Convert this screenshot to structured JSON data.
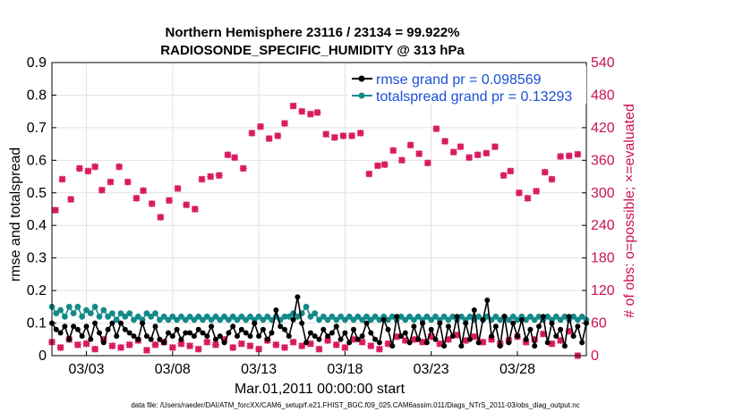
{
  "chart_data": {
    "type": "line",
    "title_line1": "Northern Hemisphere 23116 / 23134 = 99.922%",
    "title_line2": "RADIOSONDE_SPECIFIC_HUMIDITY @ 313 hPa",
    "xlabel": "Mar.01,2011 00:00:00 start",
    "ylabel_left": "rmse and totalspread",
    "ylabel_right": "# of obs: o=possible; ×=evaluated",
    "footer": "data file: /Users/raeder/DAI/ATM_forcXX/CAM6_setup/f.e21.FHIST_BGC.f09_025.CAM6assim.011/Diags_NTrS_2011-03/obs_diag_output.nc",
    "xlim": [
      1,
      32
    ],
    "x_ticks": [
      3,
      8,
      13,
      18,
      23,
      28
    ],
    "x_tick_labels": [
      "03/03",
      "03/08",
      "03/13",
      "03/18",
      "03/23",
      "03/28"
    ],
    "ylim_left": [
      0,
      0.9
    ],
    "y_ticks_left": [
      "0",
      "0.1",
      "0.2",
      "0.3",
      "0.4",
      "0.5",
      "0.6",
      "0.7",
      "0.8",
      "0.9"
    ],
    "ylim_right": [
      0,
      540
    ],
    "y_ticks_right": [
      "0",
      "60",
      "120",
      "180",
      "240",
      "300",
      "360",
      "420",
      "480",
      "540"
    ],
    "grid": true,
    "legend_position": "top-right",
    "colors": {
      "rmse": "#000000",
      "totalspread": "#138a8a",
      "obs": "#d81b60",
      "right_axis": "#cc1155",
      "legend_text": "#1a4fd6",
      "grid": "#e2e2e2"
    },
    "series": [
      {
        "name": "rmse grand pr = 0.098569",
        "key": "rmse",
        "x_start": 1.0,
        "x_step": 0.25,
        "values": [
          0.1,
          0.08,
          0.07,
          0.09,
          0.05,
          0.09,
          0.08,
          0.06,
          0.09,
          0.05,
          0.1,
          0.07,
          0.04,
          0.08,
          0.1,
          0.06,
          0.1,
          0.08,
          0.07,
          0.06,
          0.05,
          0.1,
          0.06,
          0.05,
          0.09,
          0.05,
          0.04,
          0.07,
          0.06,
          0.08,
          0.05,
          0.07,
          0.07,
          0.06,
          0.08,
          0.07,
          0.06,
          0.09,
          0.05,
          0.06,
          0.04,
          0.07,
          0.09,
          0.06,
          0.08,
          0.07,
          0.06,
          0.1,
          0.06,
          0.08,
          0.05,
          0.07,
          0.14,
          0.09,
          0.08,
          0.06,
          0.11,
          0.18,
          0.1,
          0.04,
          0.07,
          0.06,
          0.05,
          0.08,
          0.06,
          0.07,
          0.09,
          0.05,
          0.07,
          0.04,
          0.08,
          0.05,
          0.06,
          0.1,
          0.07,
          0.05,
          0.04,
          0.11,
          0.08,
          0.03,
          0.12,
          0.06,
          0.07,
          0.04,
          0.09,
          0.05,
          0.1,
          0.04,
          0.08,
          0.05,
          0.1,
          0.03,
          0.09,
          0.06,
          0.12,
          0.03,
          0.1,
          0.05,
          0.14,
          0.04,
          0.11,
          0.17,
          0.06,
          0.09,
          0.03,
          0.12,
          0.04,
          0.1,
          0.06,
          0.11,
          0.05,
          0.08,
          0.03,
          0.09,
          0.12,
          0.04,
          0.1,
          0.06,
          0.08,
          0.03,
          0.12,
          0.06,
          0.09,
          0.04,
          0.1,
          0.05,
          0.08,
          0.12,
          0.03,
          0.09,
          0.05,
          0.11,
          0.04,
          0.1,
          0.06,
          0.09,
          0.05,
          0.07,
          0.04,
          0.08,
          0.03,
          0.06,
          0.09,
          0.04,
          0.1,
          0.06,
          0.12,
          0.05,
          0.08,
          0.1,
          0.04,
          0.09,
          0.06,
          0.11,
          0.05,
          0.12,
          0.04,
          0.09,
          0.06,
          0.1,
          0.05,
          0.11,
          0.03,
          0.12,
          0.05,
          0.08,
          0.12,
          0.06,
          0.1,
          0.04,
          0.09,
          0.12,
          0.03,
          0.11,
          0.05,
          0.13,
          0.06,
          0.03,
          0.11,
          0.05,
          0.13,
          0.04,
          0.12,
          0.06,
          0.1,
          0.04,
          0.11,
          0.08,
          0.12,
          0.06,
          0.09,
          0.04,
          0.1,
          0.12,
          0.06,
          0.09,
          0.04,
          0.11,
          0.08,
          0.12,
          0.1,
          0.05,
          0.09,
          0.12,
          0.04,
          0.1,
          0.06,
          0.13,
          0.08,
          0.11,
          0.07,
          0.06,
          0.09,
          0.12,
          0.06,
          0.13,
          0.1,
          0.04,
          0.11,
          0.08,
          0.1,
          0.05,
          0.12,
          0.11,
          0.05,
          0.08,
          0.1
        ]
      },
      {
        "name": "totalspread grand pr = 0.13293",
        "key": "totalspread",
        "x_start": 1.0,
        "x_step": 0.25,
        "values": [
          0.15,
          0.13,
          0.14,
          0.12,
          0.15,
          0.13,
          0.15,
          0.12,
          0.14,
          0.13,
          0.15,
          0.12,
          0.14,
          0.12,
          0.13,
          0.11,
          0.13,
          0.12,
          0.13,
          0.11,
          0.12,
          0.11,
          0.13,
          0.12,
          0.13,
          0.11,
          0.12,
          0.11,
          0.12,
          0.11,
          0.12,
          0.11,
          0.12,
          0.11,
          0.12,
          0.11,
          0.12,
          0.11,
          0.12,
          0.11,
          0.12,
          0.11,
          0.12,
          0.11,
          0.12,
          0.11,
          0.12,
          0.11,
          0.12,
          0.11,
          0.12,
          0.11,
          0.12,
          0.11,
          0.12,
          0.12,
          0.13,
          0.12,
          0.13,
          0.15,
          0.12,
          0.13,
          0.11,
          0.12,
          0.11,
          0.12,
          0.11,
          0.12,
          0.11,
          0.12,
          0.11,
          0.12,
          0.11,
          0.12,
          0.11,
          0.12,
          0.11,
          0.12,
          0.11,
          0.12,
          0.11,
          0.12,
          0.11,
          0.12,
          0.11,
          0.12,
          0.11,
          0.12,
          0.11,
          0.12,
          0.11,
          0.12,
          0.11,
          0.12,
          0.11,
          0.12,
          0.11,
          0.12,
          0.11,
          0.12,
          0.11,
          0.12,
          0.11,
          0.12,
          0.11,
          0.12,
          0.11,
          0.12,
          0.11,
          0.12,
          0.11,
          0.12,
          0.11,
          0.12,
          0.11,
          0.12,
          0.11,
          0.12,
          0.11,
          0.12,
          0.11,
          0.12,
          0.11,
          0.12,
          0.11,
          0.12,
          0.11,
          0.12,
          0.11,
          0.12,
          0.11,
          0.12,
          0.11,
          0.12,
          0.11,
          0.12,
          0.11,
          0.12,
          0.11,
          0.12,
          0.11,
          0.12,
          0.11,
          0.12,
          0.11,
          0.12,
          0.11,
          0.12,
          0.11,
          0.12,
          0.11,
          0.12,
          0.11,
          0.12,
          0.11,
          0.12,
          0.11,
          0.12,
          0.11,
          0.12,
          0.11,
          0.12,
          0.11,
          0.12,
          0.11,
          0.12,
          0.11,
          0.12,
          0.11,
          0.12,
          0.11,
          0.12,
          0.11,
          0.12,
          0.11,
          0.12,
          0.11,
          0.12,
          0.11,
          0.12,
          0.11,
          0.12,
          0.11,
          0.12,
          0.11,
          0.12,
          0.11,
          0.12,
          0.11,
          0.12,
          0.11,
          0.12,
          0.11,
          0.12,
          0.11,
          0.12,
          0.11,
          0.12,
          0.11,
          0.12,
          0.11,
          0.12,
          0.11,
          0.12,
          0.11,
          0.12,
          0.11,
          0.12,
          0.11,
          0.12,
          0.11,
          0.12,
          0.11,
          0.12,
          0.11,
          0.12,
          0.11,
          0.12,
          0.11,
          0.12,
          0.11,
          0.12,
          0.11,
          0.12,
          0.11,
          0.12
        ]
      }
    ],
    "obs_evaluated_high": {
      "key": "obs_high",
      "x": [
        1.2,
        1.6,
        2.1,
        2.6,
        3.1,
        3.5,
        3.9,
        4.4,
        4.9,
        5.4,
        5.9,
        6.3,
        6.8,
        7.3,
        7.8,
        8.3,
        8.8,
        9.3,
        9.7,
        10.2,
        10.7,
        11.2,
        11.6,
        12.1,
        12.6,
        13.1,
        13.6,
        14.1,
        14.5,
        15.0,
        15.5,
        16.0,
        16.4,
        16.9,
        17.4,
        17.9,
        18.4,
        18.9,
        19.4,
        19.9,
        20.3,
        20.8,
        21.3,
        21.8,
        22.3,
        22.8,
        23.3,
        23.8,
        24.3,
        24.7,
        25.2,
        25.7,
        26.2,
        26.7,
        27.2,
        27.6,
        28.1,
        28.6,
        29.1,
        29.6,
        30.0,
        30.5,
        31.0,
        31.5
      ],
      "values": [
        268,
        325,
        288,
        345,
        340,
        348,
        305,
        320,
        348,
        320,
        290,
        304,
        280,
        255,
        286,
        308,
        278,
        270,
        325,
        330,
        332,
        370,
        365,
        345,
        410,
        422,
        400,
        405,
        428,
        460,
        450,
        445,
        448,
        408,
        402,
        405,
        405,
        410,
        335,
        350,
        352,
        378,
        360,
        388,
        372,
        355,
        418,
        395,
        375,
        385,
        365,
        370,
        373,
        385,
        332,
        340,
        300,
        290,
        303,
        338,
        325,
        367,
        368,
        371
      ]
    },
    "obs_evaluated_low": {
      "key": "obs_low",
      "x_start": 1.0,
      "x_step": 0.5,
      "values": [
        25,
        15,
        30,
        20,
        22,
        12,
        30,
        18,
        15,
        20,
        28,
        10,
        20,
        25,
        15,
        22,
        18,
        12,
        25,
        20,
        30,
        15,
        22,
        18,
        12,
        28,
        20,
        15,
        25,
        18,
        22,
        12,
        28,
        20,
        15,
        30,
        25,
        18,
        12,
        22,
        35,
        28,
        30,
        25,
        35,
        22,
        30,
        38,
        28,
        35,
        25,
        30,
        22,
        28,
        35,
        25,
        30,
        40,
        22,
        28,
        45,
        0
      ]
    }
  }
}
